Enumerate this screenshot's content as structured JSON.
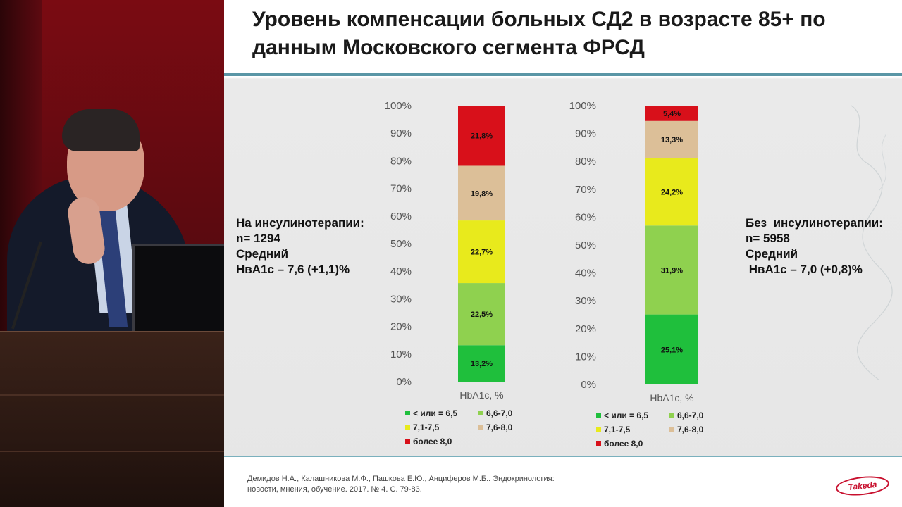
{
  "slide": {
    "title_line1": "Уровень компенсации больных СД2 в возрасте 85+ по",
    "title_line2": "данным Московского сегмента ФРСД",
    "left_info": [
      "На инсулинотерапии:",
      "n= 1294",
      "Средний",
      "НвА1с – 7,6 (+1,1)%"
    ],
    "right_info": [
      "Без  инсулинотерапии:",
      "n= 5958",
      "Средний",
      " НвА1с – 7,0 (+0,8)%"
    ],
    "citation_line1": "Демидов Н.А., Калашникова М.Ф., Пашкова Е.Ю., Анциферов М.Б.. Эндокринология:",
    "citation_line2": "новости, мнения, обучение. 2017.  № 4. С. 79-83.",
    "logo_text": "Takeda"
  },
  "chart_data": [
    {
      "type": "bar",
      "stacked": true,
      "categories": [
        "HbA1c, %"
      ],
      "ylim": [
        0,
        100
      ],
      "y_ticks": [
        "0%",
        "10%",
        "20%",
        "30%",
        "40%",
        "50%",
        "60%",
        "70%",
        "80%",
        "90%",
        "100%"
      ],
      "series": [
        {
          "name": "< или = 6,5",
          "values": [
            13.2
          ],
          "label": "13,2%",
          "color": "#1fbf3c"
        },
        {
          "name": "6,6-7,0",
          "values": [
            22.5
          ],
          "label": "22,5%",
          "color": "#8fd14f"
        },
        {
          "name": "7,1-7,5",
          "values": [
            22.7
          ],
          "label": "22,7%",
          "color": "#e8ea1c"
        },
        {
          "name": "7,6-8,0",
          "values": [
            19.8
          ],
          "label": "19,8%",
          "color": "#dcbf98"
        },
        {
          "name": "более 8,0",
          "values": [
            21.8
          ],
          "label": "21,8%",
          "color": "#d8101a"
        }
      ],
      "legend_position": "bottom"
    },
    {
      "type": "bar",
      "stacked": true,
      "categories": [
        "HbA1c, %"
      ],
      "ylim": [
        0,
        100
      ],
      "y_ticks": [
        "0%",
        "10%",
        "20%",
        "30%",
        "40%",
        "50%",
        "60%",
        "70%",
        "80%",
        "90%",
        "100%"
      ],
      "series": [
        {
          "name": "< или = 6,5",
          "values": [
            25.1
          ],
          "label": "25,1%",
          "color": "#1fbf3c"
        },
        {
          "name": "6,6-7,0",
          "values": [
            31.9
          ],
          "label": "31,9%",
          "color": "#8fd14f"
        },
        {
          "name": "7,1-7,5",
          "values": [
            24.2
          ],
          "label": "24,2%",
          "color": "#e8ea1c"
        },
        {
          "name": "7,6-8,0",
          "values": [
            13.3
          ],
          "label": "13,3%",
          "color": "#dcbf98"
        },
        {
          "name": "более 8,0",
          "values": [
            5.4
          ],
          "label": "5,4%",
          "color": "#d8101a"
        }
      ],
      "legend_position": "bottom"
    }
  ]
}
